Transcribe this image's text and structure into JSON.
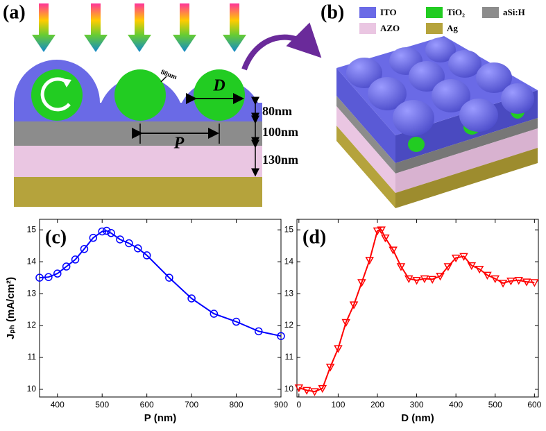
{
  "panel_a": {
    "label": "(a)",
    "particle_gap": "80nm",
    "diameter": "D",
    "period": "P",
    "ito_thickness": "80nm",
    "asi_thickness": "100nm",
    "azo_thickness": "130nm"
  },
  "panel_b": {
    "label": "(b)",
    "legend": [
      {
        "name": "ITO",
        "color": "#6a6ae6"
      },
      {
        "name": "TiO₂",
        "color": "#22cc22"
      },
      {
        "name": "aSi:H",
        "color": "#8c8c8c"
      },
      {
        "name": "AZO",
        "color": "#eac6e2"
      },
      {
        "name": "Ag",
        "color": "#b5a33c"
      }
    ]
  },
  "chart_data": [
    {
      "type": "line",
      "label": "(c)",
      "x_label": "P (nm)",
      "y_label": "Jₚₕ (mA/cm²)",
      "color": "#0000ff",
      "marker": "circle",
      "x": [
        360,
        380,
        400,
        420,
        440,
        460,
        480,
        500,
        510,
        520,
        540,
        560,
        580,
        600,
        650,
        700,
        750,
        800,
        850,
        900
      ],
      "values": [
        13.5,
        13.52,
        13.63,
        13.85,
        14.07,
        14.4,
        14.75,
        14.95,
        14.97,
        14.9,
        14.7,
        14.58,
        14.42,
        14.2,
        13.5,
        12.85,
        12.37,
        12.12,
        11.82,
        11.67
      ],
      "xlim": [
        360,
        900
      ],
      "ylim": [
        9.76,
        15.33
      ],
      "xticks": [
        400,
        500,
        600,
        700,
        800,
        900
      ],
      "yticks": [
        10,
        11,
        12,
        13,
        14,
        15
      ]
    },
    {
      "type": "line",
      "label": "(d)",
      "x_label": "D (nm)",
      "color": "#ff0000",
      "marker": "triangle-down",
      "x": [
        0,
        20,
        40,
        60,
        80,
        100,
        120,
        140,
        160,
        180,
        200,
        210,
        220,
        240,
        260,
        280,
        300,
        320,
        340,
        360,
        380,
        400,
        420,
        440,
        460,
        480,
        500,
        520,
        540,
        560,
        580,
        600
      ],
      "values": [
        10.05,
        9.97,
        9.93,
        10.03,
        10.7,
        11.28,
        12.1,
        12.65,
        13.35,
        14.05,
        14.97,
        15.0,
        14.75,
        14.37,
        13.85,
        13.47,
        13.42,
        13.47,
        13.45,
        13.55,
        13.85,
        14.12,
        14.17,
        13.88,
        13.77,
        13.58,
        13.47,
        13.33,
        13.4,
        13.42,
        13.37,
        13.35
      ],
      "xlim": [
        -5,
        610
      ],
      "ylim": [
        9.76,
        15.33
      ],
      "xticks": [
        0,
        100,
        200,
        300,
        400,
        500,
        600
      ],
      "yticks": [
        10,
        11,
        12,
        13,
        14,
        15
      ]
    }
  ]
}
